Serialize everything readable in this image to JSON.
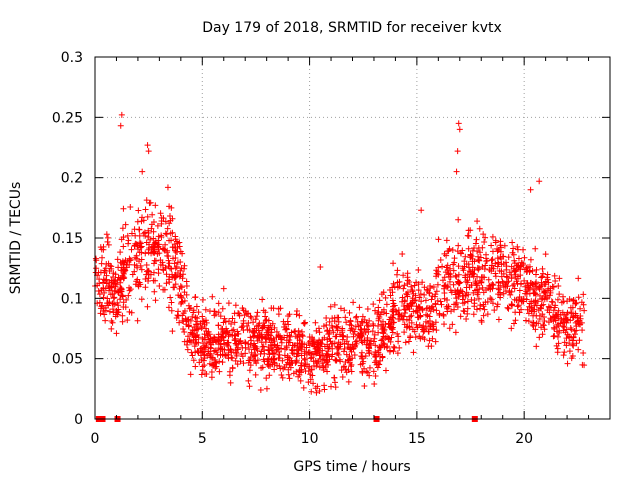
{
  "chart_data": {
    "type": "scatter",
    "title": "Day 179 of 2018, SRMTID for receiver kvtx",
    "xlabel": "GPS time / hours",
    "ylabel": "SRMTID / TECUs",
    "xlim": [
      0,
      24
    ],
    "ylim": [
      0,
      0.3
    ],
    "grid": true,
    "marker": "+",
    "x_ticks": [
      0,
      5,
      10,
      15,
      20
    ],
    "x_tick_labels": [
      "0",
      "5",
      "10",
      "15",
      "20"
    ],
    "y_ticks": [
      0,
      0.05,
      0.1,
      0.15,
      0.2,
      0.25,
      0.3
    ],
    "y_tick_labels": [
      "0",
      "0.05",
      "0.1",
      "0.15",
      "0.2",
      "0.25",
      "0.3"
    ],
    "colors": {
      "series": "#ff0000",
      "grid": "#a0a0a0",
      "frame": "#000000"
    },
    "profile": [
      [
        0.0,
        0.13
      ],
      [
        0.5,
        0.11
      ],
      [
        1.0,
        0.1
      ],
      [
        1.5,
        0.13
      ],
      [
        2.0,
        0.14
      ],
      [
        2.5,
        0.14
      ],
      [
        3.0,
        0.14
      ],
      [
        3.5,
        0.13
      ],
      [
        4.0,
        0.11
      ],
      [
        4.5,
        0.07
      ],
      [
        5.0,
        0.065
      ],
      [
        6.0,
        0.065
      ],
      [
        7.0,
        0.065
      ],
      [
        8.0,
        0.062
      ],
      [
        9.0,
        0.06
      ],
      [
        9.5,
        0.055
      ],
      [
        10.0,
        0.052
      ],
      [
        10.5,
        0.055
      ],
      [
        11.0,
        0.06
      ],
      [
        12.0,
        0.065
      ],
      [
        13.0,
        0.065
      ],
      [
        13.5,
        0.07
      ],
      [
        14.0,
        0.085
      ],
      [
        14.5,
        0.095
      ],
      [
        15.0,
        0.09
      ],
      [
        15.5,
        0.085
      ],
      [
        16.0,
        0.1
      ],
      [
        16.5,
        0.11
      ],
      [
        17.0,
        0.11
      ],
      [
        18.0,
        0.12
      ],
      [
        19.0,
        0.12
      ],
      [
        20.0,
        0.11
      ],
      [
        20.5,
        0.1
      ],
      [
        21.0,
        0.1
      ],
      [
        21.5,
        0.085
      ],
      [
        22.0,
        0.075
      ],
      [
        22.5,
        0.08
      ],
      [
        22.8,
        0.085
      ]
    ],
    "spread": 0.025,
    "n_points": 2200,
    "peaks": [
      {
        "x": 1.25,
        "y": 0.252
      },
      {
        "x": 1.2,
        "y": 0.243
      },
      {
        "x": 2.45,
        "y": 0.227
      },
      {
        "x": 2.5,
        "y": 0.222
      },
      {
        "x": 2.2,
        "y": 0.205
      },
      {
        "x": 3.4,
        "y": 0.192
      },
      {
        "x": 16.95,
        "y": 0.245
      },
      {
        "x": 17.0,
        "y": 0.24
      },
      {
        "x": 16.9,
        "y": 0.222
      },
      {
        "x": 16.85,
        "y": 0.205
      },
      {
        "x": 15.2,
        "y": 0.173
      },
      {
        "x": 20.7,
        "y": 0.197
      },
      {
        "x": 20.3,
        "y": 0.19
      },
      {
        "x": 10.5,
        "y": 0.126
      },
      {
        "x": 6.0,
        "y": 0.108
      }
    ],
    "zero_markers": [
      0.18,
      0.28,
      0.35,
      1.05,
      13.12,
      17.7
    ]
  }
}
